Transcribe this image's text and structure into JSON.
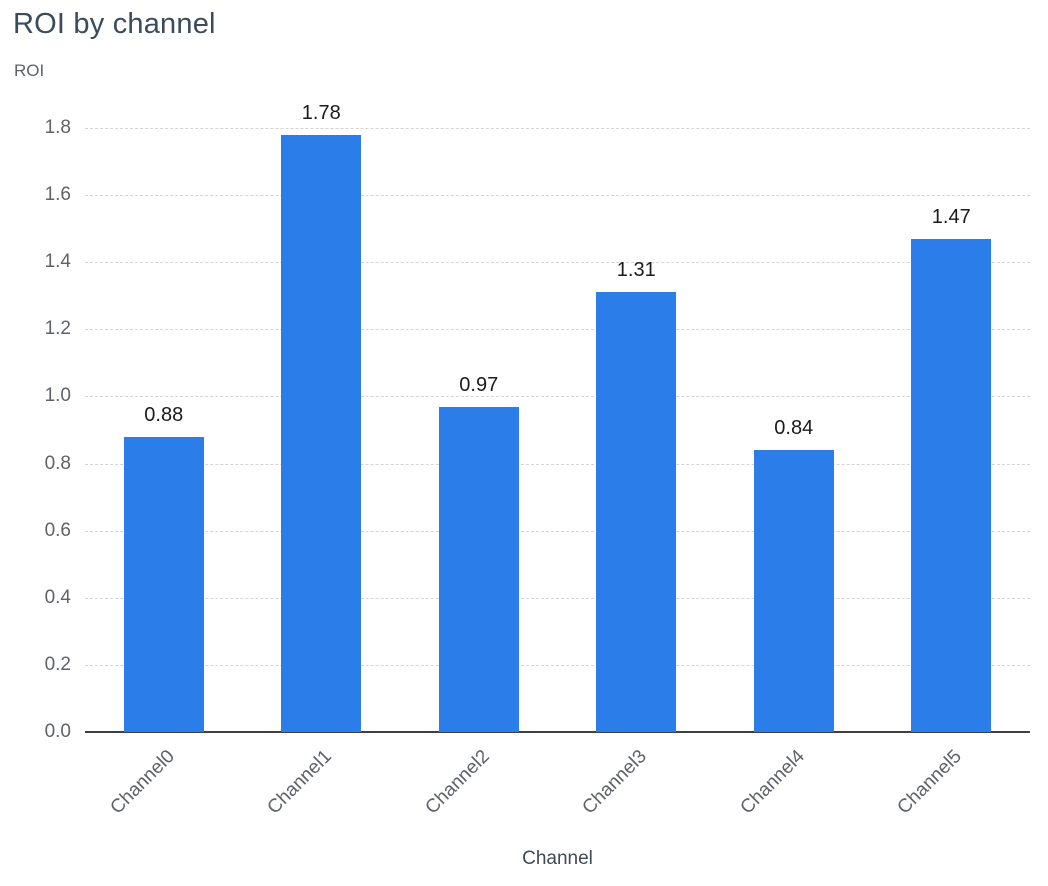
{
  "chart_data": {
    "type": "bar",
    "title": "ROI by channel",
    "ylabel": "ROI",
    "xlabel": "Channel",
    "categories": [
      "Channel0",
      "Channel1",
      "Channel2",
      "Channel3",
      "Channel4",
      "Channel5"
    ],
    "values": [
      0.88,
      1.78,
      0.97,
      1.31,
      0.84,
      1.47
    ],
    "value_labels": [
      "0.88",
      "1.78",
      "0.97",
      "1.31",
      "0.84",
      "1.47"
    ],
    "ylim": [
      0,
      1.8
    ],
    "ytick_step": 0.2,
    "ytick_labels": [
      "0.0",
      "0.2",
      "0.4",
      "0.6",
      "0.8",
      "1.0",
      "1.2",
      "1.4",
      "1.6",
      "1.8"
    ],
    "grid": true,
    "gridline_style": "dashed",
    "legend": "none",
    "bar_color": "#2b7de9",
    "title_color": "#3b4b5c",
    "axis_text_color": "#5f6368",
    "value_label_color": "#1b1b1b"
  }
}
